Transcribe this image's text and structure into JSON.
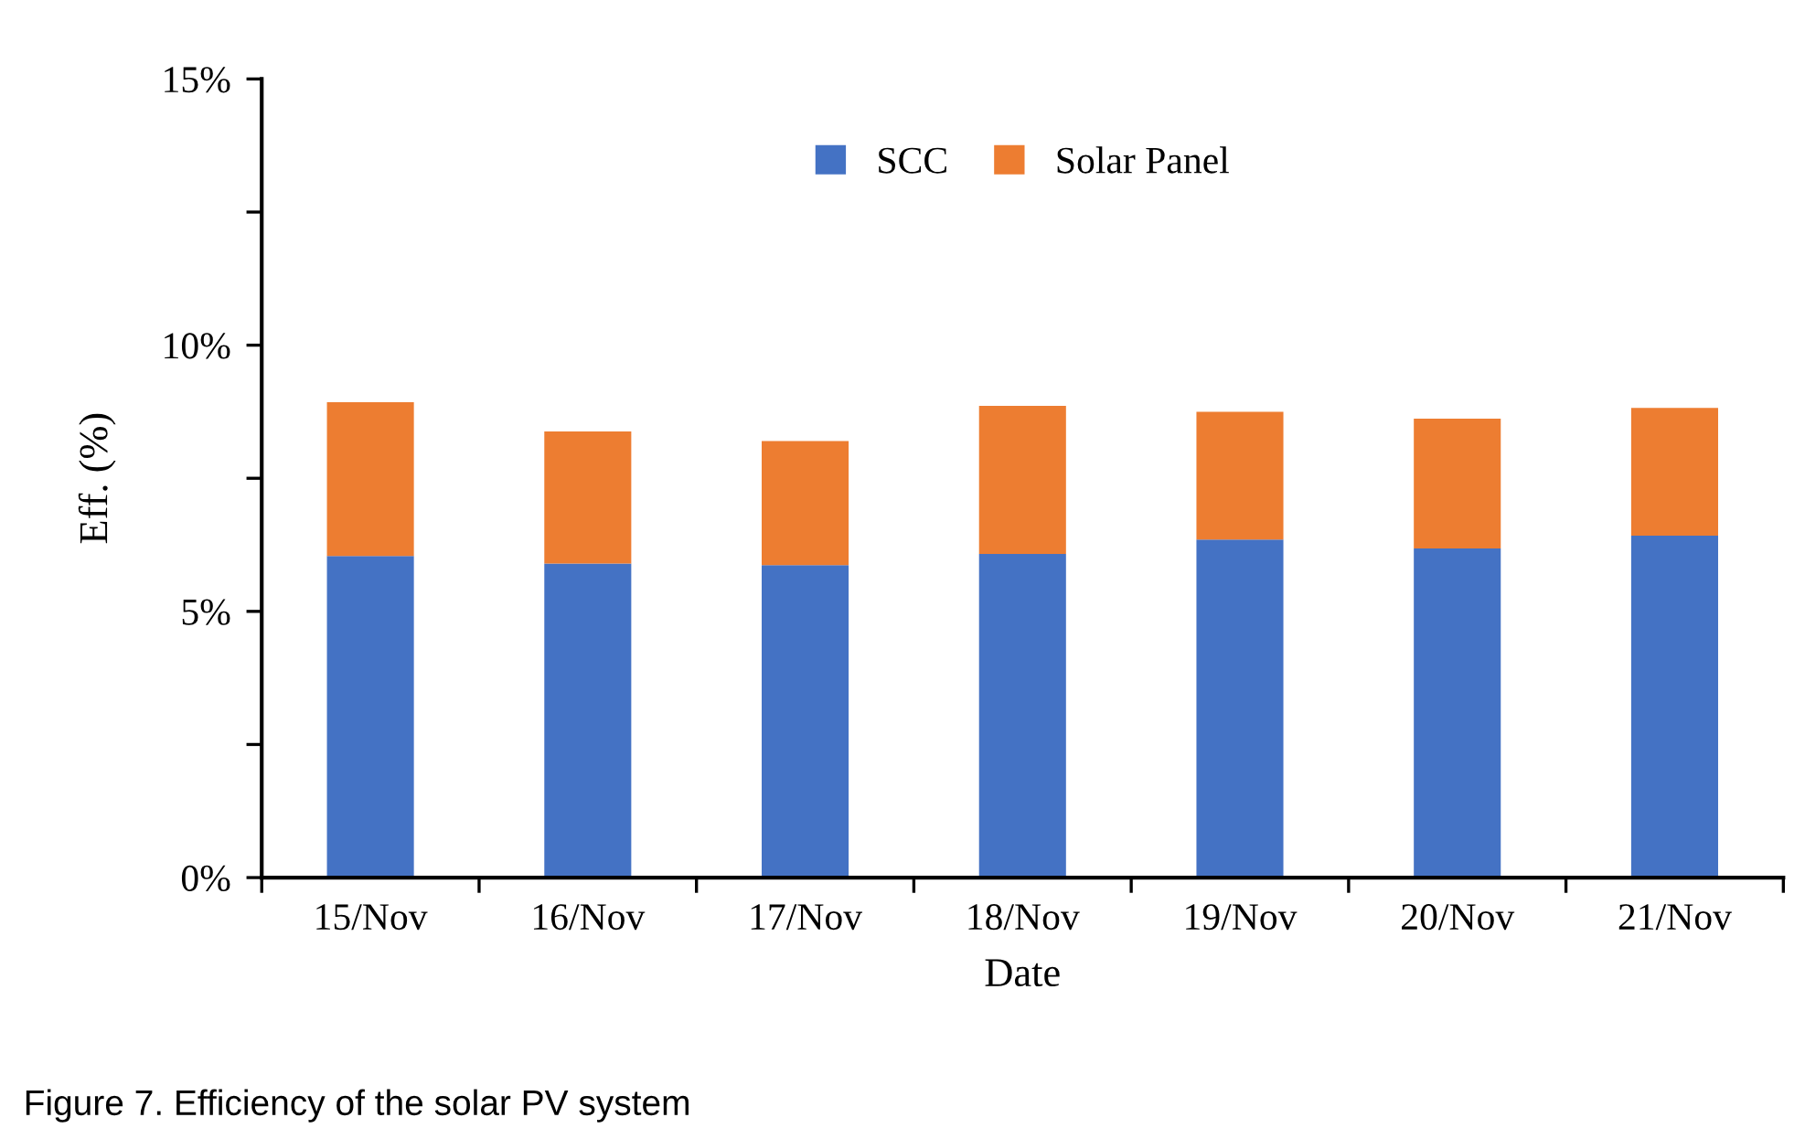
{
  "chart_data": {
    "type": "bar",
    "stacked": true,
    "xlabel": "Date",
    "ylabel": "Eff. (%)",
    "categories": [
      "15/Nov",
      "16/Nov",
      "17/Nov",
      "18/Nov",
      "19/Nov",
      "20/Nov",
      "21/Nov"
    ],
    "series": [
      {
        "name": "SCC",
        "color": "#4472c4",
        "values": [
          6.04,
          5.9,
          5.87,
          6.08,
          6.35,
          6.18,
          6.42
        ]
      },
      {
        "name": "Solar Panel",
        "color": "#ed7d31",
        "values": [
          2.89,
          2.48,
          2.33,
          2.78,
          2.4,
          2.44,
          2.4
        ]
      }
    ],
    "ylim": [
      0,
      15
    ],
    "yticks": [
      {
        "value": 0,
        "label": "0%"
      },
      {
        "value": 2.5,
        "label": null
      },
      {
        "value": 5,
        "label": "5%"
      },
      {
        "value": 7.5,
        "label": null
      },
      {
        "value": 10,
        "label": "10%"
      },
      {
        "value": 12.5,
        "label": null
      },
      {
        "value": 15,
        "label": "15%"
      }
    ],
    "grid": false,
    "legend": "top",
    "annotations": [
      "Figure 7. Efficiency of the solar PV system"
    ]
  }
}
